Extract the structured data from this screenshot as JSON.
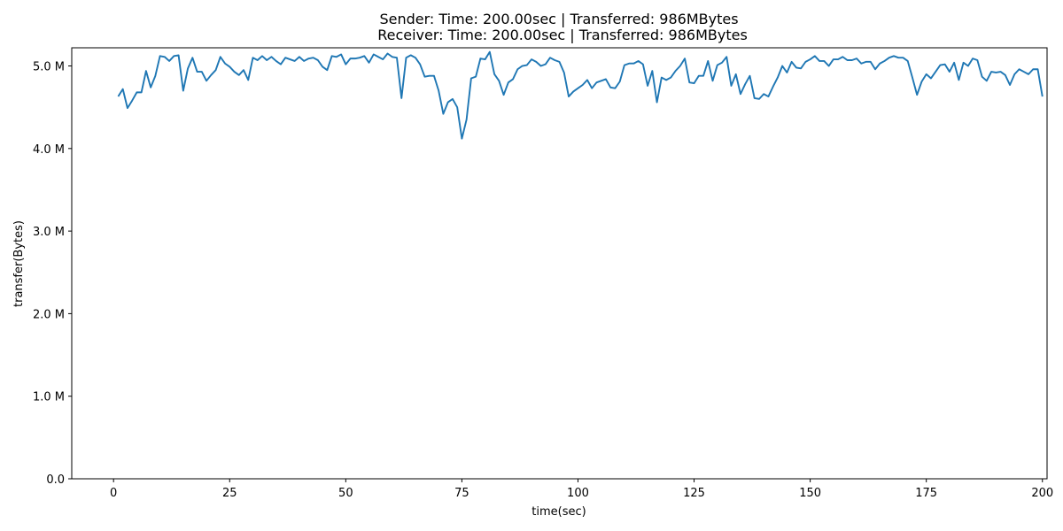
{
  "chart_data": {
    "type": "line",
    "title_line1": "Sender: Time: 200.00sec | Transferred: 986MBytes",
    "title_line2": "Receiver: Time: 200.00sec | Transferred: 986MBytes",
    "xlabel": "time(sec)",
    "ylabel": "transfer(Bytes)",
    "xlim": [
      -9,
      201
    ],
    "ylim": [
      0,
      5.22
    ],
    "y_unit": "M",
    "x_ticks": [
      0,
      25,
      50,
      75,
      100,
      125,
      150,
      175,
      200
    ],
    "x_tick_labels": [
      "0",
      "25",
      "50",
      "75",
      "100",
      "125",
      "150",
      "175",
      "200"
    ],
    "y_ticks": [
      0,
      1,
      2,
      3,
      4,
      5
    ],
    "y_tick_labels": [
      "0.0",
      "1.0 M",
      "2.0 M",
      "3.0 M",
      "4.0 M",
      "5.0 M"
    ],
    "grid": false,
    "line_color": "#1f77b4",
    "series": [
      {
        "x": [
          1,
          2,
          3,
          4,
          5,
          6,
          7,
          8,
          9,
          10,
          11,
          12,
          13,
          14,
          15,
          16,
          17,
          18,
          19,
          20,
          21,
          22,
          23,
          24,
          25,
          26,
          27,
          28,
          29,
          30,
          31,
          32,
          33,
          34,
          35,
          36,
          37,
          38,
          39,
          40,
          41,
          42,
          43,
          44,
          45,
          46,
          47,
          48,
          49,
          50,
          51,
          52,
          53,
          54,
          55,
          56,
          57,
          58,
          59,
          60,
          61,
          62,
          63,
          64,
          65,
          66,
          67,
          68,
          69,
          70,
          71,
          72,
          73,
          74,
          75,
          76,
          77,
          78,
          79,
          80,
          81,
          82,
          83,
          84,
          85,
          86,
          87,
          88,
          89,
          90,
          91,
          92,
          93,
          94,
          95,
          96,
          97,
          98,
          99,
          100,
          101,
          102,
          103,
          104,
          105,
          106,
          107,
          108,
          109,
          110,
          111,
          112,
          113,
          114,
          115,
          116,
          117,
          118,
          119,
          120,
          121,
          122,
          123,
          124,
          125,
          126,
          127,
          128,
          129,
          130,
          131,
          132,
          133,
          134,
          135,
          136,
          137,
          138,
          139,
          140,
          141,
          142,
          143,
          144,
          145,
          146,
          147,
          148,
          149,
          150,
          151,
          152,
          153,
          154,
          155,
          156,
          157,
          158,
          159,
          160,
          161,
          162,
          163,
          164,
          165,
          166,
          167,
          168,
          169,
          170,
          171,
          172,
          173,
          174,
          175,
          176,
          177,
          178,
          179,
          180,
          181,
          182,
          183,
          184,
          185,
          186,
          187,
          188,
          189,
          190,
          191,
          192,
          193,
          194,
          195,
          196,
          197,
          198,
          199,
          200
        ],
        "values": [
          4.63,
          4.72,
          4.49,
          4.58,
          4.68,
          4.68,
          4.94,
          4.74,
          4.88,
          5.12,
          5.11,
          5.06,
          5.12,
          5.13,
          4.7,
          4.97,
          5.1,
          4.93,
          4.93,
          4.82,
          4.89,
          4.95,
          5.11,
          5.03,
          4.99,
          4.93,
          4.89,
          4.95,
          4.83,
          5.1,
          5.07,
          5.12,
          5.07,
          5.11,
          5.06,
          5.02,
          5.1,
          5.08,
          5.06,
          5.11,
          5.06,
          5.09,
          5.1,
          5.07,
          4.99,
          4.95,
          5.12,
          5.11,
          5.14,
          5.02,
          5.09,
          5.09,
          5.1,
          5.12,
          5.04,
          5.14,
          5.11,
          5.08,
          5.15,
          5.11,
          5.1,
          4.61,
          5.1,
          5.13,
          5.1,
          5.02,
          4.87,
          4.88,
          4.88,
          4.7,
          4.42,
          4.56,
          4.6,
          4.5,
          4.12,
          4.35,
          4.85,
          4.87,
          5.09,
          5.08,
          5.17,
          4.9,
          4.82,
          4.65,
          4.8,
          4.84,
          4.96,
          5.0,
          5.01,
          5.08,
          5.05,
          5.0,
          5.02,
          5.1,
          5.07,
          5.05,
          4.92,
          4.63,
          4.69,
          4.73,
          4.77,
          4.83,
          4.73,
          4.8,
          4.82,
          4.84,
          4.74,
          4.73,
          4.81,
          5.01,
          5.03,
          5.03,
          5.06,
          5.02,
          4.76,
          4.94,
          4.56,
          4.86,
          4.83,
          4.86,
          4.94,
          5.0,
          5.09,
          4.8,
          4.79,
          4.88,
          4.88,
          5.06,
          4.82,
          5.01,
          5.04,
          5.11,
          4.76,
          4.9,
          4.66,
          4.78,
          4.88,
          4.61,
          4.6,
          4.66,
          4.63,
          4.75,
          4.86,
          5.0,
          4.92,
          5.05,
          4.98,
          4.97,
          5.05,
          5.08,
          5.12,
          5.06,
          5.06,
          5.0,
          5.08,
          5.08,
          5.11,
          5.07,
          5.07,
          5.09,
          5.03,
          5.05,
          5.05,
          4.96,
          5.03,
          5.06,
          5.1,
          5.12,
          5.1,
          5.1,
          5.06,
          4.86,
          4.65,
          4.81,
          4.9,
          4.85,
          4.93,
          5.01,
          5.02,
          4.93,
          5.04,
          4.83,
          5.04,
          5.0,
          5.09,
          5.07,
          4.87,
          4.82,
          4.93,
          4.92,
          4.93,
          4.89,
          4.77,
          4.9,
          4.96,
          4.93,
          4.9,
          4.96,
          4.96,
          4.63
        ]
      }
    ]
  }
}
